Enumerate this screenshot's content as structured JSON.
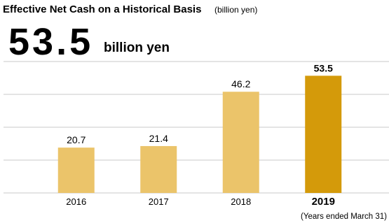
{
  "chart_data": {
    "type": "bar",
    "title": "Effective Net Cash on a Historical Basis",
    "subtitle": "(billion yen)",
    "headline_value": "53.5",
    "headline_unit": "billion yen",
    "note": "(Years ended March 31)",
    "categories": [
      "2016",
      "2017",
      "2018",
      "2019"
    ],
    "values": [
      20.7,
      21.4,
      46.2,
      53.5
    ],
    "colors": [
      "#ebc46a",
      "#ebc46a",
      "#ebc46a",
      "#d49a0a"
    ],
    "bold": [
      false,
      false,
      false,
      true
    ],
    "ylim": [
      0,
      60
    ],
    "yticks": [
      0,
      15,
      30,
      45,
      60
    ],
    "grid": true
  }
}
